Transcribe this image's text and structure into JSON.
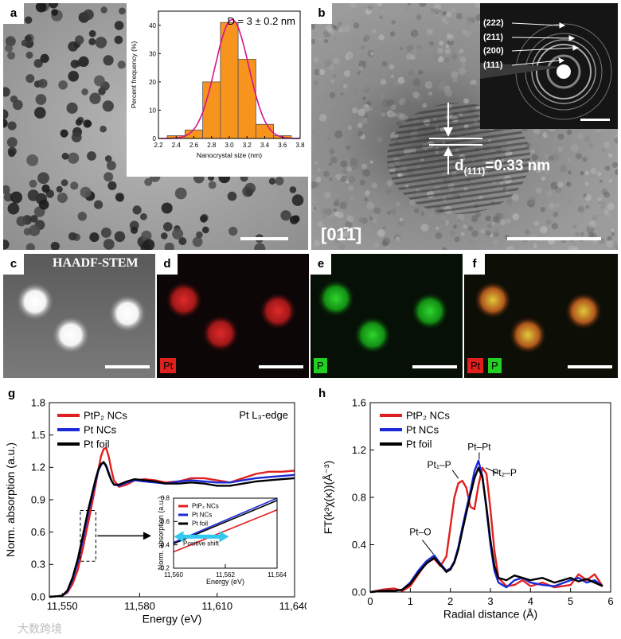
{
  "panels": {
    "a": {
      "label": "a"
    },
    "b": {
      "label": "b",
      "lattice_text": "d",
      "lattice_sub": "(111)",
      "lattice_value": "=0.33 nm",
      "zone_axis": "[01̄1̄]",
      "rings": [
        "(222)",
        "(211)",
        "(200)",
        "(111)"
      ]
    },
    "c": {
      "label": "c",
      "title": "HAADF-STEM"
    },
    "d": {
      "label": "d",
      "channel": "Pt",
      "channel_color": "#e0201c"
    },
    "e": {
      "label": "e",
      "channel": "P",
      "channel_color": "#22d022"
    },
    "f": {
      "label": "f",
      "channel1": "Pt",
      "channel2": "P"
    },
    "g": {
      "label": "g"
    },
    "h": {
      "label": "h"
    }
  },
  "watermark": "大数跨境",
  "chart_data": [
    {
      "id": "size-histogram",
      "type": "bar",
      "title": "D = 3 ± 0.2 nm",
      "xlabel": "Nanocrystal size (nm)",
      "ylabel": "Percent frequency (%)",
      "xlim": [
        2.2,
        3.8
      ],
      "ylim": [
        0,
        45
      ],
      "xticks": [
        "2.2",
        "2.4",
        "2.6",
        "2.8",
        "3.0",
        "3.2",
        "3.4",
        "3.6",
        "3.8"
      ],
      "yticks": [
        "0",
        "10",
        "20",
        "30",
        "40"
      ],
      "bin_width": 0.2,
      "bins": [
        2.4,
        2.6,
        2.8,
        3.0,
        3.2,
        3.4,
        3.6
      ],
      "values": [
        1,
        3,
        20,
        41,
        28,
        5,
        1
      ],
      "fit": {
        "type": "gaussian",
        "mean": 3.03,
        "sigma": 0.19,
        "amplitude": 42
      }
    },
    {
      "id": "xanes",
      "type": "line",
      "xlabel": "Energy (eV)",
      "ylabel": "Norm. absorption (a.u.)",
      "annotation": "Pt L₃-edge",
      "xlim": [
        11545,
        11640
      ],
      "ylim": [
        0,
        1.8
      ],
      "xticks": [
        "11,550",
        "11,580",
        "11,610",
        "11,640"
      ],
      "xtick_values": [
        11550,
        11580,
        11610,
        11640
      ],
      "yticks": [
        "0.0",
        "0.3",
        "0.6",
        "0.9",
        "1.2",
        "1.5",
        "1.8"
      ],
      "ytick_values": [
        0,
        0.3,
        0.6,
        0.9,
        1.2,
        1.5,
        1.8
      ],
      "legend": [
        "PtP₂ NCs",
        "Pt NCs",
        "Pt foil"
      ],
      "series": [
        {
          "name": "PtP₂ NCs",
          "color": "#e02020",
          "x": [
            11545,
            11548,
            11550,
            11552,
            11554,
            11556,
            11558,
            11560,
            11562,
            11563,
            11564,
            11565,
            11566,
            11567,
            11568,
            11569,
            11570,
            11572,
            11575,
            11578,
            11582,
            11586,
            11590,
            11595,
            11600,
            11605,
            11610,
            11615,
            11620,
            11625,
            11630,
            11635,
            11640
          ],
          "y": [
            0.0,
            0.005,
            0.01,
            0.04,
            0.12,
            0.25,
            0.45,
            0.68,
            0.92,
            1.05,
            1.18,
            1.3,
            1.37,
            1.38,
            1.3,
            1.18,
            1.08,
            1.02,
            1.04,
            1.08,
            1.09,
            1.08,
            1.06,
            1.07,
            1.1,
            1.1,
            1.08,
            1.06,
            1.1,
            1.14,
            1.16,
            1.16,
            1.17
          ]
        },
        {
          "name": "Pt NCs",
          "color": "#1a2ad6",
          "x": [
            11545,
            11548,
            11550,
            11552,
            11554,
            11556,
            11558,
            11560,
            11562,
            11563,
            11564,
            11565,
            11566,
            11567,
            11568,
            11569,
            11570,
            11572,
            11575,
            11578,
            11582,
            11586,
            11590,
            11595,
            11600,
            11605,
            11610,
            11615,
            11620,
            11625,
            11630,
            11635,
            11640
          ],
          "y": [
            0.0,
            0.005,
            0.01,
            0.05,
            0.16,
            0.32,
            0.53,
            0.77,
            0.98,
            1.08,
            1.17,
            1.22,
            1.25,
            1.22,
            1.15,
            1.08,
            1.04,
            1.03,
            1.06,
            1.08,
            1.07,
            1.06,
            1.05,
            1.07,
            1.08,
            1.07,
            1.06,
            1.06,
            1.08,
            1.1,
            1.11,
            1.12,
            1.13
          ]
        },
        {
          "name": "Pt foil",
          "color": "#000000",
          "x": [
            11545,
            11548,
            11550,
            11552,
            11554,
            11556,
            11558,
            11560,
            11562,
            11563,
            11564,
            11565,
            11566,
            11567,
            11568,
            11569,
            11570,
            11572,
            11575,
            11578,
            11582,
            11586,
            11590,
            11595,
            11600,
            11605,
            11610,
            11615,
            11620,
            11625,
            11630,
            11635,
            11640
          ],
          "y": [
            0.0,
            0.005,
            0.01,
            0.06,
            0.18,
            0.35,
            0.57,
            0.8,
            1.0,
            1.1,
            1.18,
            1.23,
            1.25,
            1.21,
            1.14,
            1.08,
            1.04,
            1.04,
            1.07,
            1.09,
            1.08,
            1.07,
            1.05,
            1.05,
            1.06,
            1.05,
            1.03,
            1.03,
            1.05,
            1.07,
            1.08,
            1.09,
            1.1
          ]
        }
      ],
      "inset": {
        "xlabel": "Energy (eV)",
        "ylabel": "Norm. absorption (a.u.)",
        "xlim": [
          11560,
          11564
        ],
        "ylim": [
          0.2,
          0.8
        ],
        "xticks": [
          "11,560",
          "11,562",
          "11,564"
        ],
        "xtick_values": [
          11560,
          11562,
          11564
        ],
        "yticks": [
          "0.2",
          "0.4",
          "0.6",
          "0.8"
        ],
        "ytick_values": [
          0.2,
          0.4,
          0.6,
          0.8
        ],
        "legend": [
          "PtP₂ NCs",
          "Pt NCs",
          "Pt foil"
        ],
        "annotation": "Positive shift",
        "series": [
          {
            "name": "PtP₂ NCs",
            "color": "#e02020",
            "x": [
              11560,
              11564
            ],
            "y": [
              0.34,
              0.7
            ]
          },
          {
            "name": "Pt NCs",
            "color": "#1a2ad6",
            "x": [
              11560,
              11564
            ],
            "y": [
              0.42,
              0.8
            ]
          },
          {
            "name": "Pt foil",
            "color": "#000000",
            "x": [
              11560,
              11564
            ],
            "y": [
              0.41,
              0.78
            ]
          }
        ]
      }
    },
    {
      "id": "exafs",
      "type": "line",
      "xlabel": "Radial distance (Å)",
      "ylabel": "FT(k³χ(κ))(Å⁻³)",
      "xlim": [
        0,
        6
      ],
      "ylim": [
        0,
        1.6
      ],
      "xticks": [
        "0",
        "1",
        "2",
        "3",
        "4",
        "5",
        "6"
      ],
      "xtick_values": [
        0,
        1,
        2,
        3,
        4,
        5,
        6
      ],
      "yticks": [
        "0.0",
        "0.4",
        "0.8",
        "1.2",
        "1.6"
      ],
      "ytick_values": [
        0,
        0.4,
        0.8,
        1.2,
        1.6
      ],
      "legend": [
        "PtP₂ NCs",
        "Pt NCs",
        "Pt foil"
      ],
      "annotations": [
        "Pt–Pt",
        "Pt₁–P",
        "Pt₂–P",
        "Pt–O"
      ],
      "series": [
        {
          "name": "PtP₂ NCs",
          "color": "#e02020",
          "x": [
            0.0,
            0.3,
            0.6,
            0.8,
            1.0,
            1.2,
            1.4,
            1.6,
            1.75,
            1.9,
            2.0,
            2.1,
            2.2,
            2.3,
            2.4,
            2.5,
            2.6,
            2.7,
            2.8,
            2.9,
            3.0,
            3.1,
            3.2,
            3.4,
            3.6,
            3.8,
            4.0,
            4.3,
            4.6,
            5.0,
            5.2,
            5.4,
            5.6,
            5.8
          ],
          "y": [
            0.0,
            0.02,
            0.03,
            0.01,
            0.05,
            0.15,
            0.25,
            0.28,
            0.22,
            0.3,
            0.55,
            0.8,
            0.92,
            0.94,
            0.88,
            0.72,
            0.7,
            0.9,
            1.05,
            1.0,
            0.7,
            0.35,
            0.12,
            0.05,
            0.06,
            0.1,
            0.05,
            0.08,
            0.04,
            0.06,
            0.15,
            0.1,
            0.15,
            0.05
          ]
        },
        {
          "name": "Pt NCs",
          "color": "#1a2ad6",
          "x": [
            0.0,
            0.3,
            0.6,
            0.8,
            1.0,
            1.2,
            1.4,
            1.6,
            1.75,
            1.9,
            2.0,
            2.1,
            2.2,
            2.3,
            2.4,
            2.5,
            2.6,
            2.7,
            2.8,
            2.9,
            3.0,
            3.1,
            3.2,
            3.4,
            3.6,
            3.8,
            4.0,
            4.3,
            4.6,
            5.0,
            5.2,
            5.4,
            5.6,
            5.8
          ],
          "y": [
            0.0,
            0.01,
            0.01,
            0.02,
            0.08,
            0.18,
            0.26,
            0.31,
            0.24,
            0.18,
            0.2,
            0.26,
            0.38,
            0.55,
            0.7,
            0.85,
            1.02,
            1.11,
            0.98,
            0.7,
            0.4,
            0.18,
            0.08,
            0.04,
            0.1,
            0.12,
            0.08,
            0.06,
            0.05,
            0.1,
            0.12,
            0.08,
            0.1,
            0.05
          ]
        },
        {
          "name": "Pt foil",
          "color": "#000000",
          "x": [
            0.0,
            0.3,
            0.6,
            0.8,
            1.0,
            1.2,
            1.4,
            1.6,
            1.75,
            1.9,
            2.0,
            2.1,
            2.2,
            2.3,
            2.4,
            2.5,
            2.6,
            2.7,
            2.8,
            2.9,
            3.0,
            3.1,
            3.2,
            3.4,
            3.6,
            3.8,
            4.0,
            4.3,
            4.6,
            5.0,
            5.2,
            5.4,
            5.6,
            5.8
          ],
          "y": [
            0.0,
            0.01,
            0.01,
            0.02,
            0.07,
            0.16,
            0.24,
            0.29,
            0.23,
            0.17,
            0.19,
            0.25,
            0.36,
            0.52,
            0.67,
            0.82,
            0.96,
            1.05,
            0.97,
            0.72,
            0.44,
            0.22,
            0.12,
            0.1,
            0.14,
            0.12,
            0.1,
            0.12,
            0.08,
            0.12,
            0.09,
            0.11,
            0.08,
            0.05
          ]
        }
      ]
    }
  ]
}
